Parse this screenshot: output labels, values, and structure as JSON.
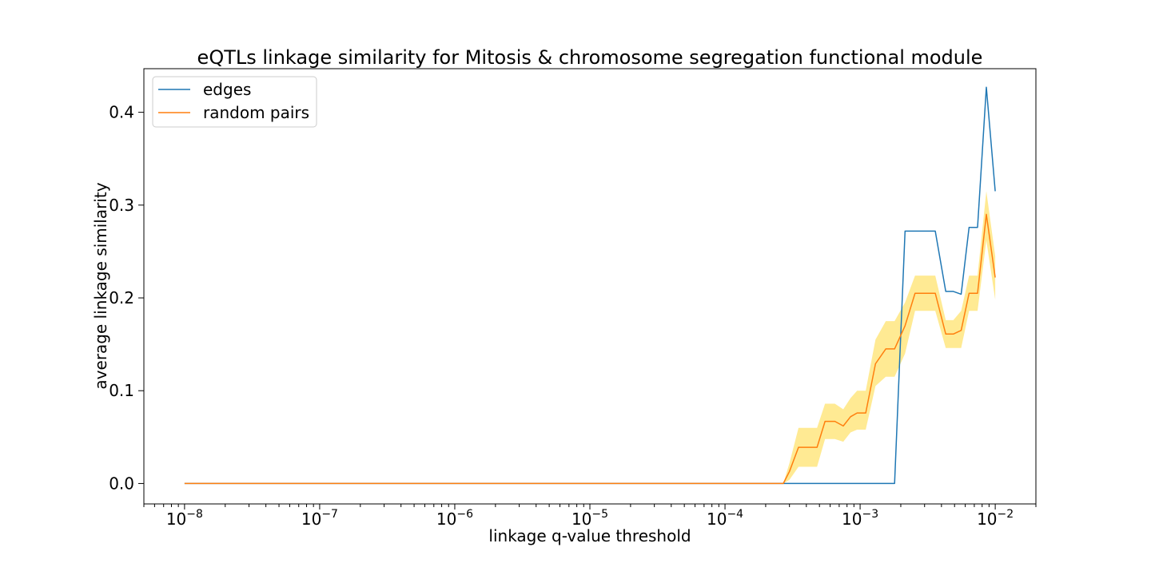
{
  "chart_data": {
    "type": "line",
    "title": "eQTLs linkage similarity for Mitosis & chromosome segregation functional module",
    "xlabel": "linkage q-value threshold",
    "ylabel": "average linkage similarity",
    "xscale": "log",
    "xlim": [
      5e-09,
      0.02
    ],
    "ylim": [
      -0.022,
      0.447
    ],
    "x_ticks": [
      {
        "value": 1e-08,
        "base": "10",
        "exp": "−8"
      },
      {
        "value": 1e-07,
        "base": "10",
        "exp": "−7"
      },
      {
        "value": 1e-06,
        "base": "10",
        "exp": "−6"
      },
      {
        "value": 1e-05,
        "base": "10",
        "exp": "−5"
      },
      {
        "value": 0.0001,
        "base": "10",
        "exp": "−4"
      },
      {
        "value": 0.001,
        "base": "10",
        "exp": "−3"
      },
      {
        "value": 0.01,
        "base": "10",
        "exp": "−2"
      }
    ],
    "y_ticks": [
      {
        "value": 0.0,
        "label": "0.0"
      },
      {
        "value": 0.1,
        "label": "0.1"
      },
      {
        "value": 0.2,
        "label": "0.2"
      },
      {
        "value": 0.3,
        "label": "0.3"
      },
      {
        "value": 0.4,
        "label": "0.4"
      }
    ],
    "legend_position": "upper-left",
    "grid": false,
    "series": [
      {
        "name": "edges",
        "color": "#1f77b4",
        "x": [
          1e-08,
          0.00027,
          0.0003,
          0.00035,
          0.0004,
          0.00048,
          0.00055,
          0.00065,
          0.00075,
          0.00085,
          0.00095,
          0.0011,
          0.0013,
          0.00155,
          0.0018,
          0.00215,
          0.00255,
          0.003,
          0.0036,
          0.0043,
          0.0049,
          0.0056,
          0.0064,
          0.0074,
          0.0086,
          0.01
        ],
        "y": [
          0.0,
          0.0,
          0.0,
          0.0,
          0.0,
          0.0,
          0.0,
          0.0,
          0.0,
          0.0,
          0.0,
          0.0,
          0.0,
          0.0,
          0.0,
          0.272,
          0.272,
          0.272,
          0.272,
          0.207,
          0.207,
          0.204,
          0.276,
          0.276,
          0.427,
          0.315
        ]
      },
      {
        "name": "random pairs",
        "color": "#ff7f0e",
        "band_color": "#ffe680",
        "x": [
          1e-08,
          0.00027,
          0.0003,
          0.00035,
          0.0004,
          0.00048,
          0.00055,
          0.00065,
          0.00075,
          0.00085,
          0.00095,
          0.0011,
          0.0013,
          0.00155,
          0.0018,
          0.00215,
          0.00255,
          0.003,
          0.0036,
          0.0043,
          0.0049,
          0.0056,
          0.0064,
          0.0074,
          0.0086,
          0.01
        ],
        "y": [
          0.0,
          0.0,
          0.013,
          0.039,
          0.039,
          0.039,
          0.067,
          0.067,
          0.062,
          0.072,
          0.076,
          0.076,
          0.129,
          0.145,
          0.145,
          0.17,
          0.205,
          0.205,
          0.205,
          0.161,
          0.161,
          0.165,
          0.205,
          0.205,
          0.29,
          0.222
        ],
        "lower": [
          0.0,
          0.0,
          0.004,
          0.018,
          0.018,
          0.018,
          0.048,
          0.048,
          0.045,
          0.055,
          0.058,
          0.058,
          0.105,
          0.115,
          0.115,
          0.14,
          0.186,
          0.186,
          0.186,
          0.146,
          0.146,
          0.146,
          0.186,
          0.186,
          0.262,
          0.198
        ],
        "upper": [
          0.0,
          0.0,
          0.022,
          0.06,
          0.06,
          0.06,
          0.086,
          0.086,
          0.08,
          0.092,
          0.1,
          0.1,
          0.155,
          0.175,
          0.175,
          0.195,
          0.224,
          0.224,
          0.224,
          0.176,
          0.176,
          0.186,
          0.224,
          0.224,
          0.315,
          0.245
        ]
      }
    ]
  }
}
